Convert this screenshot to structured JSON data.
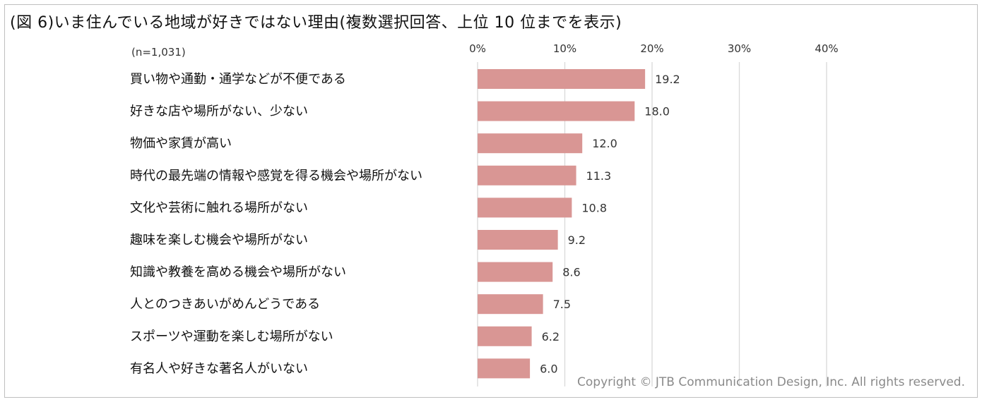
{
  "title": "(図 6)いま住んでいる地域が好きではない理由(複数選択回答、上位 10 位までを表示)",
  "copyright": "Copyright © JTB Communication Design, Inc. All rights reserved.",
  "chart_data": {
    "type": "bar",
    "orientation": "horizontal",
    "title": "(図 6)いま住んでいる地域が好きではない理由(複数選択回答、上位 10 位までを表示)",
    "subtitle": "(n=1,031)",
    "categories": [
      "買い物や通勤・通学などが不便である",
      "好きな店や場所がない、少ない",
      "物価や家賃が高い",
      "時代の最先端の情報や感覚を得る機会や場所がない",
      "文化や芸術に触れる場所がない",
      "趣味を楽しむ機会や場所がない",
      "知識や教養を高める機会や場所がない",
      "人とのつきあいがめんどうである",
      "スポーツや運動を楽しむ場所がない",
      "有名人や好きな著名人がいない"
    ],
    "values": [
      19.2,
      18.0,
      12.0,
      11.3,
      10.8,
      9.2,
      8.6,
      7.5,
      6.2,
      6.0
    ],
    "value_labels": [
      "19.2",
      "18.0",
      "12.0",
      "11.3",
      "10.8",
      "9.2",
      "8.6",
      "7.5",
      "6.2",
      "6.0"
    ],
    "xlim": [
      0,
      40
    ],
    "ticks": [
      0,
      10,
      20,
      30,
      40
    ],
    "tick_labels": [
      "0%",
      "10%",
      "20%",
      "30%",
      "40%"
    ],
    "xlabel": "",
    "ylabel": "",
    "grid": true,
    "bar_color": "#d99694",
    "grid_color": "#d9d9d9"
  }
}
